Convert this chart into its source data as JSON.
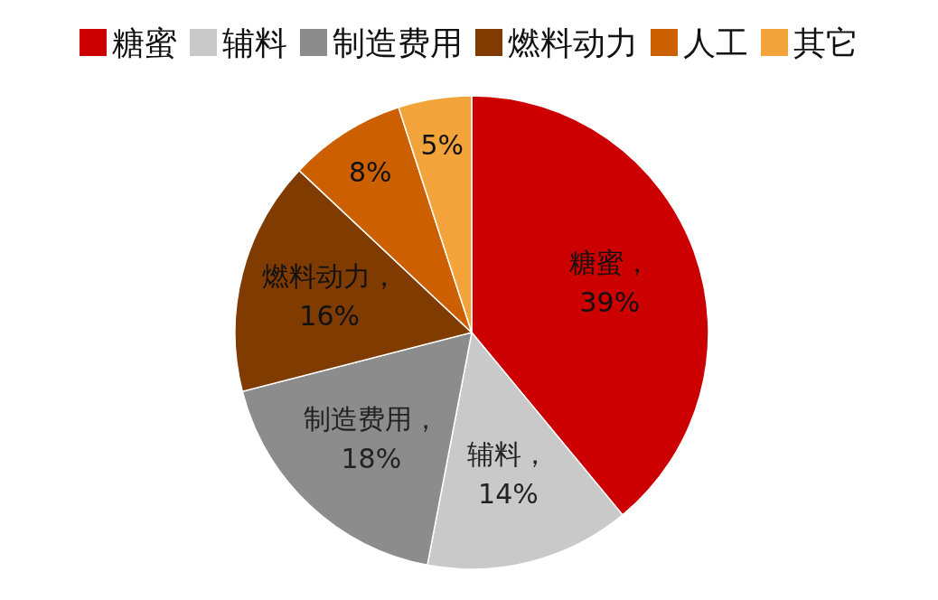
{
  "chart_data": {
    "type": "pie",
    "categories": [
      "糖蜜",
      "辅料",
      "制造费用",
      "燃料动力",
      "人工",
      "其它"
    ],
    "values": [
      39,
      14,
      18,
      16,
      8,
      5
    ],
    "colors": [
      "#cc0000",
      "#c9c9c9",
      "#8c8c8c",
      "#7f3b00",
      "#cc5f00",
      "#f2a43a"
    ],
    "value_labels": [
      "糖蜜，39%",
      "辅料，14%",
      "制造费用，18%",
      "燃料动力，16%",
      "8%",
      "5%"
    ],
    "legend": "top"
  }
}
